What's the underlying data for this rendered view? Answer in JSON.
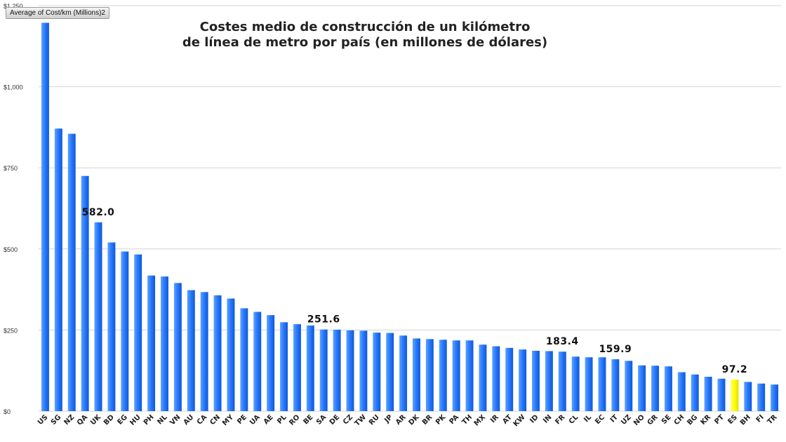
{
  "field_button": "Average of Cost/km (Millions)2",
  "chart_data": {
    "type": "bar",
    "title_line1": "Costes medio de construcción de un kilómetro",
    "title_line2": "de línea de metro por país (en millones de dólares)",
    "ylim": [
      0,
      1250
    ],
    "yticks": [
      "$0",
      "$250",
      "$500",
      "$750",
      "$1,000",
      "$1,250"
    ],
    "ytick_values": [
      0,
      250,
      500,
      750,
      1000,
      1250
    ],
    "grid": true,
    "categories": [
      "US",
      "SG",
      "NZ",
      "QA",
      "UK",
      "BD",
      "EG",
      "HU",
      "PH",
      "NL",
      "VN",
      "AU",
      "CA",
      "CN",
      "MY",
      "PE",
      "UA",
      "AE",
      "PL",
      "RO",
      "BE",
      "SA",
      "DE",
      "CZ",
      "TW",
      "RU",
      "JP",
      "AR",
      "DK",
      "BR",
      "PK",
      "PA",
      "TH",
      "MX",
      "IR",
      "AT",
      "KW",
      "ID",
      "IN",
      "FR",
      "CL",
      "IL",
      "EC",
      "IT",
      "UZ",
      "NO",
      "GR",
      "SE",
      "CH",
      "BG",
      "KR",
      "PT",
      "ES",
      "BH",
      "FI",
      "TR"
    ],
    "values": [
      1197,
      871,
      855,
      725,
      582.0,
      520,
      492,
      483,
      418,
      415,
      395,
      373,
      367,
      357,
      347,
      317,
      306,
      296,
      274,
      268,
      264,
      251.6,
      251,
      249,
      248,
      242,
      241,
      233,
      224,
      222,
      220,
      218,
      218,
      205,
      200,
      195,
      190,
      186,
      185,
      183.4,
      168,
      166,
      166,
      159.9,
      155,
      141,
      140,
      138,
      120,
      113,
      106,
      100,
      97.2,
      90,
      85,
      82
    ],
    "data_labels": [
      {
        "index": 4,
        "text": "582.0"
      },
      {
        "index": 21,
        "text": "251.6"
      },
      {
        "index": 39,
        "text": "183.4"
      },
      {
        "index": 43,
        "text": "159.9"
      },
      {
        "index": 52,
        "text": "97.2"
      }
    ],
    "bar_color": "#1e6ff0",
    "highlight_index": 52,
    "highlight_color": "#ffff00"
  }
}
